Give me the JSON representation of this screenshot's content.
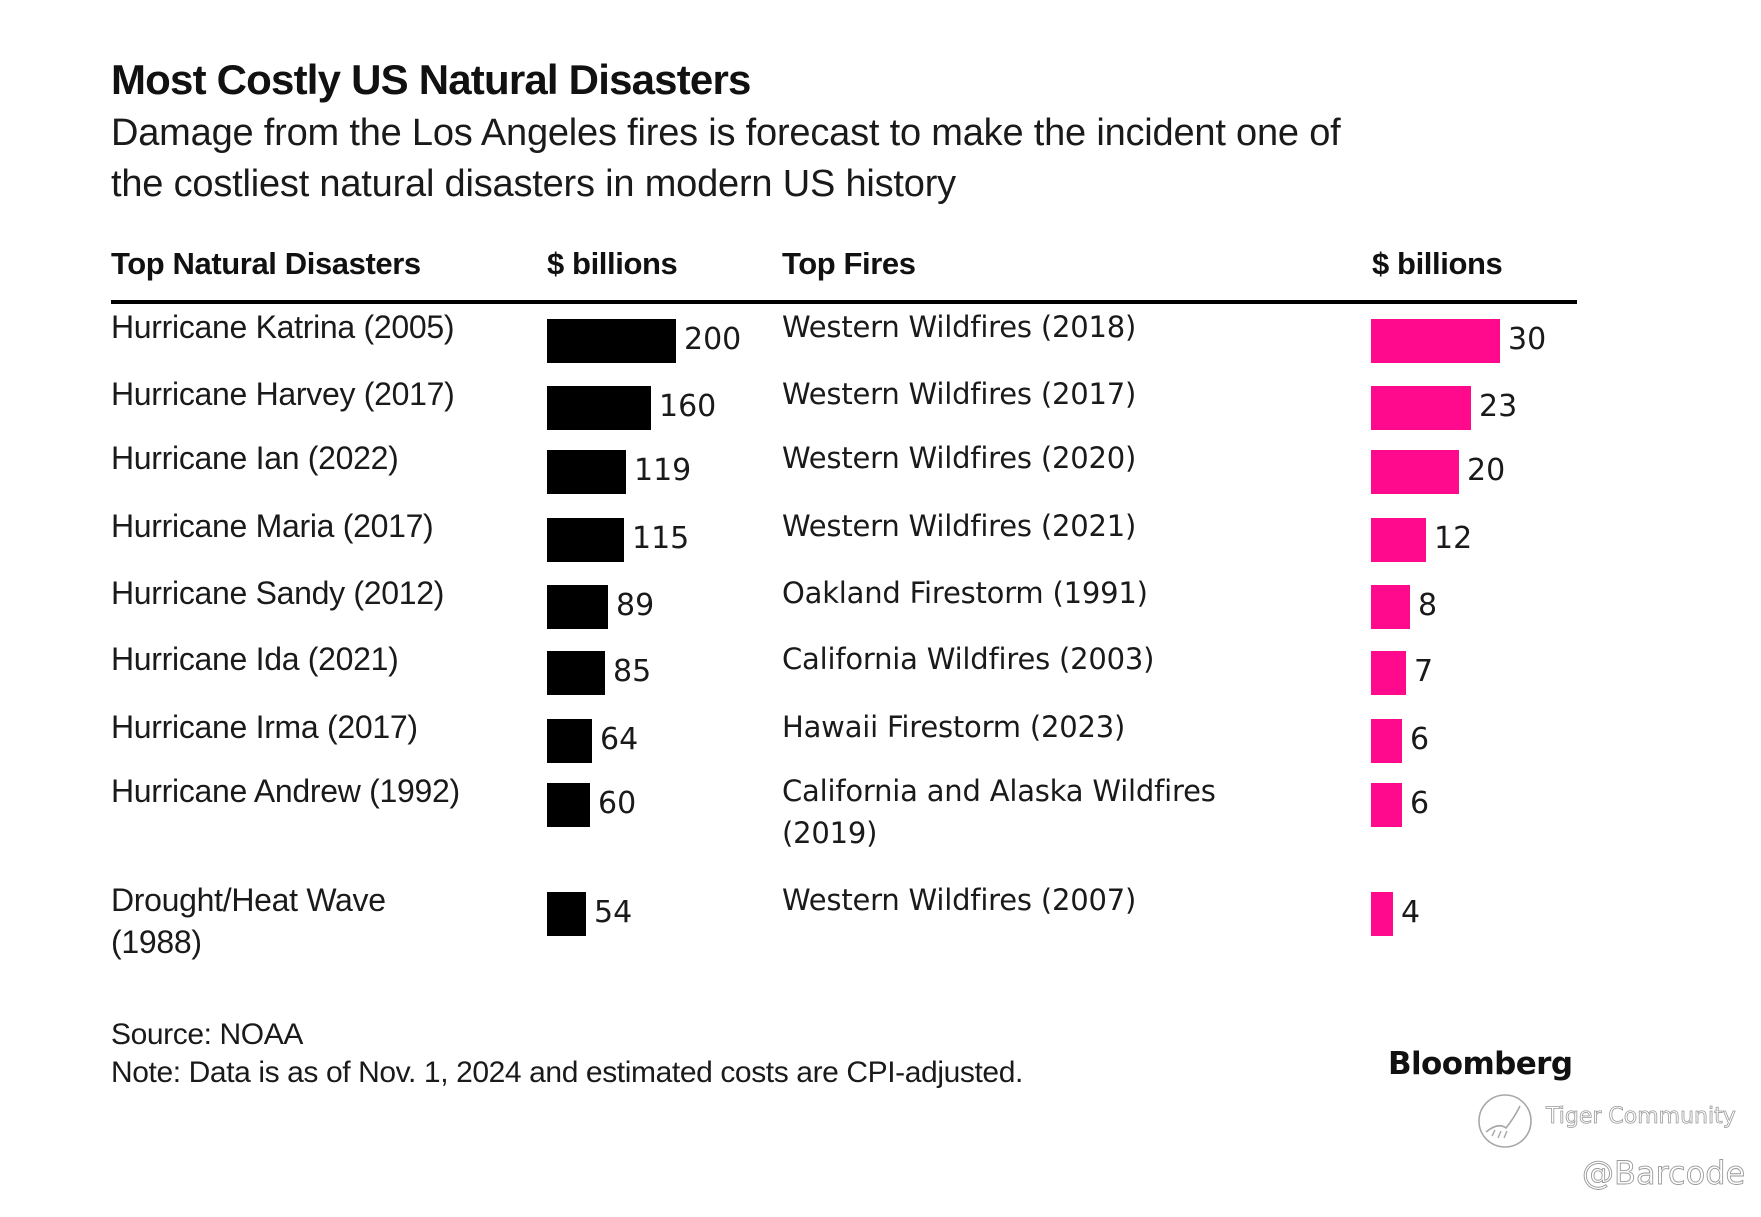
{
  "chart_data": {
    "type": "bar",
    "orientation": "horizontal",
    "title": "Most Costly US Natural Disasters",
    "subtitle": "Damage from the Los Angeles fires is forecast to make the incident one of the costliest natural disasters in modern US history",
    "subtitle_lines": [
      "Damage from the Los Angeles fires is forecast to make the incident one of",
      "the costliest natural disasters in modern US history"
    ],
    "tables": [
      {
        "name": "Top Natural Disasters",
        "header_label": "Top Natural Disasters",
        "unit_label": "$ billions",
        "color": "#000000",
        "categories": [
          "Hurricane Katrina (2005)",
          "Hurricane Harvey (2017)",
          "Hurricane Ian (2022)",
          "Hurricane Maria (2017)",
          "Hurricane Sandy (2012)",
          "Hurricane Ida (2021)",
          "Hurricane Irma (2017)",
          "Hurricane Andrew (1992)",
          "Drought/Heat Wave (1988)"
        ],
        "label_lines": [
          [
            "Hurricane Katrina (2005)"
          ],
          [
            "Hurricane Harvey (2017)"
          ],
          [
            "Hurricane Ian (2022)"
          ],
          [
            "Hurricane Maria (2017)"
          ],
          [
            "Hurricane Sandy (2012)"
          ],
          [
            "Hurricane Ida (2021)"
          ],
          [
            "Hurricane Irma (2017)"
          ],
          [
            "Hurricane Andrew (1992)"
          ],
          [
            "Drought/Heat Wave",
            "(1988)"
          ]
        ],
        "values": [
          200,
          160,
          119,
          115,
          89,
          85,
          64,
          60,
          54
        ]
      },
      {
        "name": "Top Fires",
        "header_label": "Top Fires",
        "unit_label": "$ billions",
        "color": "#ff0a8c",
        "categories": [
          "Western Wildfires (2018)",
          "Western Wildfires (2017)",
          "Western Wildfires (2020)",
          "Western Wildfires (2021)",
          "Oakland Firestorm (1991)",
          "California Wildfires (2003)",
          "Hawaii Firestorm (2023)",
          "California and Alaska Wildfires (2019)",
          "Western Wildfires (2007)"
        ],
        "label_lines": [
          [
            "Western Wildfires (2018)"
          ],
          [
            "Western Wildfires (2017)"
          ],
          [
            "Western Wildfires (2020)"
          ],
          [
            "Western Wildfires (2021)"
          ],
          [
            "Oakland Firestorm (1991)"
          ],
          [
            "California Wildfires (2003)"
          ],
          [
            "Hawaii Firestorm (2023)"
          ],
          [
            "California and Alaska Wildfires",
            "(2019)"
          ],
          [
            "Western Wildfires (2007)"
          ]
        ],
        "values": [
          30,
          23,
          20,
          12,
          8,
          7,
          6,
          6,
          4
        ]
      }
    ],
    "xlabel": "$ billions",
    "ylabel": "",
    "grid": false,
    "legend": "none",
    "source": "Source: NOAA",
    "note": "Note: Data is as of Nov. 1, 2024 and estimated costs are CPI-adjusted."
  },
  "branding": {
    "logo": "Bloomberg",
    "watermark_text": "Tiger Community",
    "watermark_handle": "@Barcode",
    "watermark_icon": "tiger-community-logo-icon"
  }
}
